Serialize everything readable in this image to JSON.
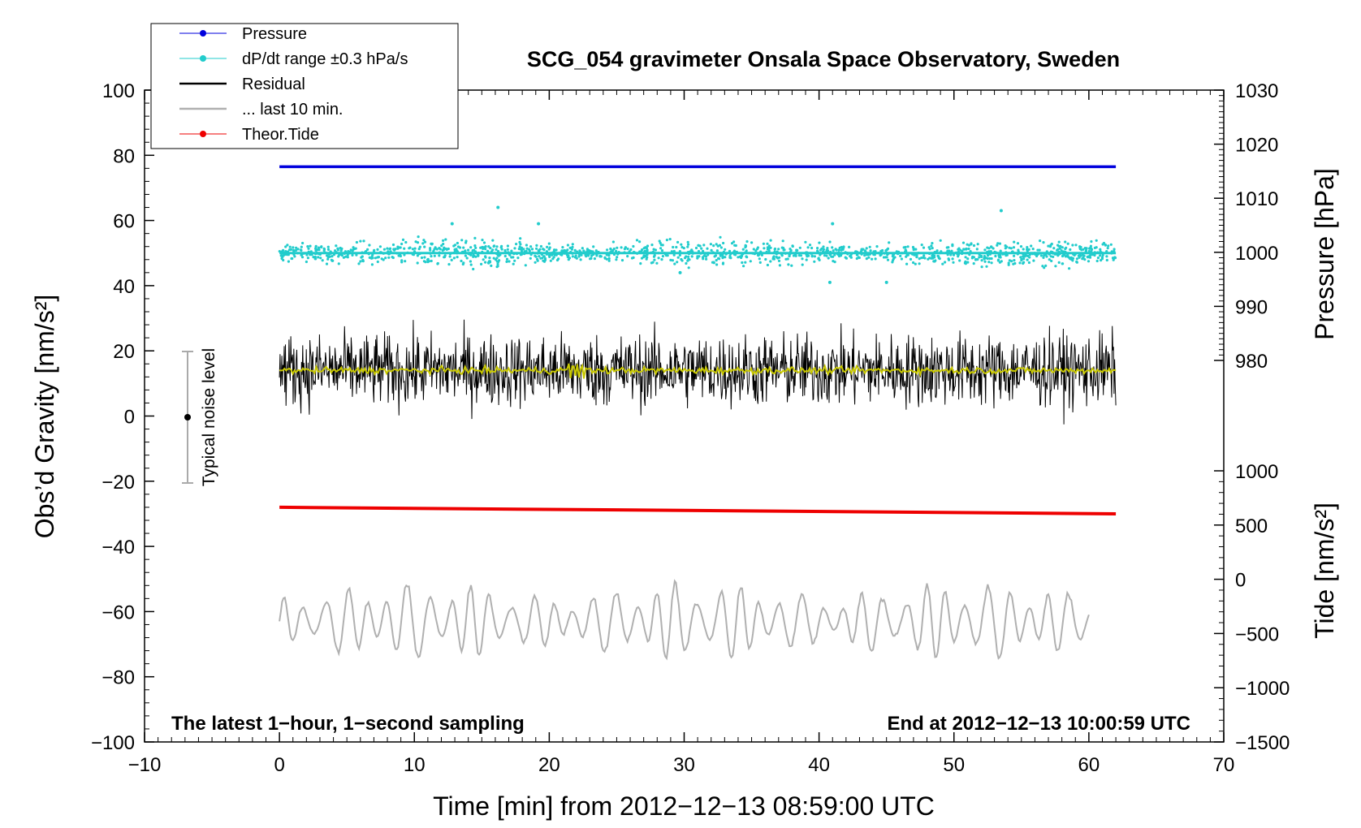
{
  "chart_data": {
    "type": "line",
    "title": "SCG_054 gravimeter Onsala Space Observatory, Sweden",
    "xlabel": "Time [min] from 2012−12−13 08:59:00 UTC",
    "ylabel_left": "Obs’d Gravity [nm/s²]",
    "ylabel_right_top": "Pressure [hPa]",
    "ylabel_right_bottom": "Tide [nm/s²]",
    "xlim": [
      -10,
      70
    ],
    "ylim_left": [
      -100,
      100
    ],
    "x_ticks": [
      "−10",
      "0",
      "10",
      "20",
      "30",
      "40",
      "50",
      "60",
      "70"
    ],
    "y_ticks_left": [
      "100",
      "80",
      "60",
      "40",
      "20",
      "0",
      "−20",
      "−40",
      "−60",
      "−80",
      "−100"
    ],
    "pressure_axis": {
      "range": [
        970,
        1030
      ],
      "ticks": [
        "1030",
        "1020",
        "1010",
        "1000",
        "990",
        "980"
      ]
    },
    "tide_axis": {
      "range": [
        -1500,
        1000
      ],
      "ticks": [
        "1000",
        "500",
        "0",
        "−500",
        "−1000",
        "−1500"
      ]
    },
    "legend": [
      {
        "label": "Pressure",
        "color": "#0000dd",
        "marker": true
      },
      {
        "label": "dP/dt range ±0.3 hPa/s",
        "color": "#22cccc",
        "marker": true
      },
      {
        "label": "Residual",
        "color": "#000000",
        "marker": false
      },
      {
        "label": "... last 10 min.",
        "color": "#b0b0b0",
        "marker": false
      },
      {
        "label": "Theor.Tide",
        "color": "#ee0000",
        "marker": true
      }
    ],
    "series": [
      {
        "name": "Pressure",
        "color": "#0000dd",
        "x_range": [
          0,
          62
        ],
        "offset_value": 76.5,
        "values": [
          76.5,
          76.5
        ]
      },
      {
        "name": "dP/dt range",
        "color": "#22cccc",
        "x_range": [
          0,
          62
        ],
        "center": 50,
        "spread": 3,
        "outliers": [
          [
            12.8,
            59
          ],
          [
            16.2,
            64
          ],
          [
            19.2,
            59
          ],
          [
            41.0,
            59
          ],
          [
            53.5,
            63
          ],
          [
            29.7,
            44
          ],
          [
            40.8,
            41
          ],
          [
            45.0,
            41
          ]
        ]
      },
      {
        "name": "Residual",
        "color": "#000000",
        "x_range": [
          0,
          62
        ],
        "center": 14,
        "min": -4,
        "max": 32
      },
      {
        "name": "Residual smoothed",
        "color": "#c8c800",
        "x_range": [
          0,
          62
        ],
        "center": 14
      },
      {
        "name": "Theor.Tide",
        "color": "#ee0000",
        "x_range": [
          0,
          62
        ],
        "values": [
          -28,
          -30
        ]
      },
      {
        "name": "... last 10 min.",
        "color": "#b0b0b0",
        "x_range": [
          0,
          60
        ],
        "center": -63,
        "min": -78,
        "max": -45
      }
    ],
    "noise_bar": {
      "label": "Typical noise level",
      "x": -7,
      "center": 0,
      "range": [
        -20,
        20
      ]
    },
    "annotations": {
      "left": "The latest 1−hour, 1−second sampling",
      "right": "End at 2012−12−13 10:00:59 UTC"
    }
  }
}
